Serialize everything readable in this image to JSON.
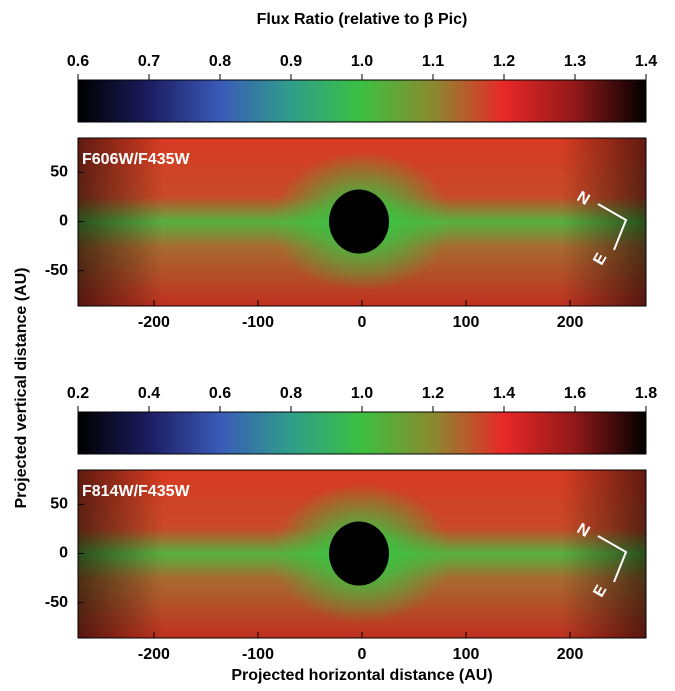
{
  "chart_data": [
    {
      "type": "image",
      "title": "Flux Ratio (relative to β Pic)",
      "y_label": "Projected vertical distance (AU)",
      "label": "F606W/F435W",
      "colormap": [
        "#000000",
        "#1c1c60",
        "#3a5ab8",
        "#2f9e8a",
        "#3cc040",
        "#8a8a30",
        "#e82828",
        "#901818",
        "#000000"
      ],
      "colorbar_lim": [
        0.6,
        1.4
      ],
      "colorbar_ticks": [
        0.6,
        0.7,
        0.8,
        0.9,
        {
          "value": 1.0,
          "label": "1.0"
        },
        1.1,
        1.2,
        1.3,
        1.4
      ],
      "xlim": [
        -273,
        273
      ],
      "xticks": [
        -200,
        -100,
        0,
        100,
        200
      ],
      "ylim": [
        -86,
        85
      ],
      "yticks": [
        -50,
        0,
        50
      ],
      "compass": [
        "N",
        "E"
      ]
    },
    {
      "type": "image",
      "x_label": "Projected horizontal distance (AU)",
      "label": "F814W/F435W",
      "colormap": [
        "#000000",
        "#1c1c60",
        "#3a5ab8",
        "#2f9e8a",
        "#3cc040",
        "#8a8a30",
        "#e82828",
        "#901818",
        "#000000"
      ],
      "colorbar_lim": [
        0.2,
        1.8
      ],
      "colorbar_ticks": [
        0.2,
        0.4,
        0.6,
        0.8,
        {
          "value": 1.0,
          "label": "1.0"
        },
        1.2,
        1.4,
        1.6,
        1.8
      ],
      "xlim": [
        -273,
        273
      ],
      "xticks": [
        -200,
        -100,
        0,
        100,
        200
      ],
      "ylim": [
        -86,
        85
      ],
      "yticks": [
        -50,
        0,
        50
      ],
      "compass": [
        "N",
        "E"
      ]
    }
  ]
}
